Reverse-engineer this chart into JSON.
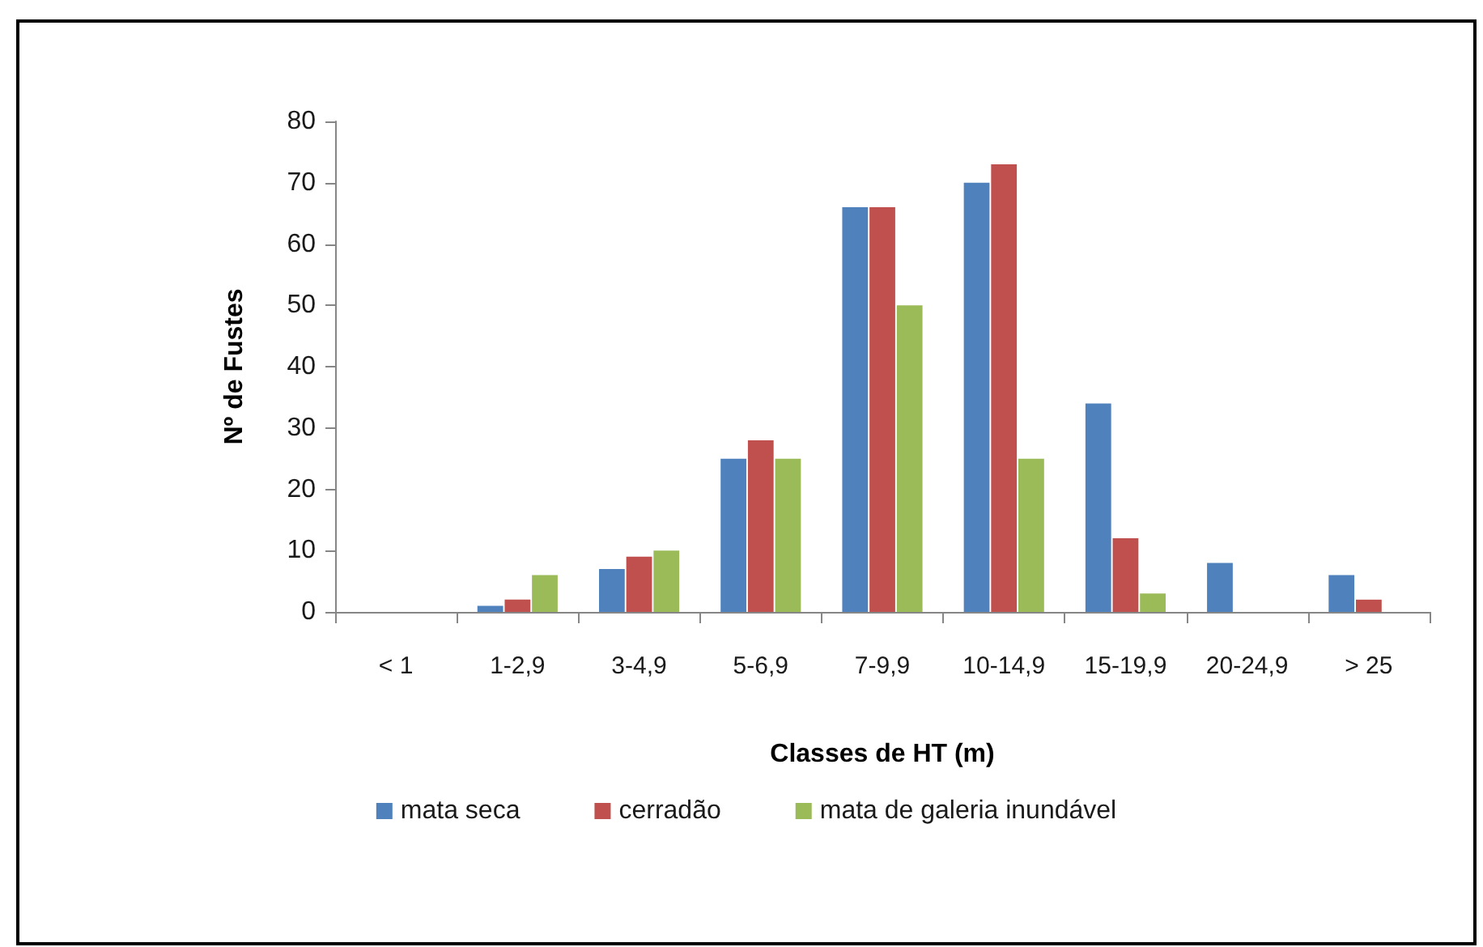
{
  "chart_data": {
    "type": "bar",
    "xlabel": "Classes de HT (m)",
    "ylabel": "Nº de Fustes",
    "categories": [
      "< 1",
      "1-2,9",
      "3-4,9",
      "5-6,9",
      "7-9,9",
      "10-14,9",
      "15-19,9",
      "20-24,9",
      "> 25"
    ],
    "series": [
      {
        "name": "mata seca",
        "color": "#4f81bd",
        "values": [
          0,
          1,
          7,
          25,
          66,
          70,
          34,
          8,
          6
        ]
      },
      {
        "name": "cerradão",
        "color": "#c0504d",
        "values": [
          0,
          2,
          9,
          28,
          66,
          73,
          12,
          0,
          2
        ]
      },
      {
        "name": "mata de galeria inundável",
        "color": "#9bbb59",
        "values": [
          null,
          6,
          10,
          25,
          50,
          25,
          3,
          null,
          null
        ]
      }
    ],
    "ylim": [
      0,
      80
    ],
    "yticks": [
      0,
      10,
      20,
      30,
      40,
      50,
      60,
      70,
      80
    ],
    "grid": false,
    "legend": "bottom"
  }
}
